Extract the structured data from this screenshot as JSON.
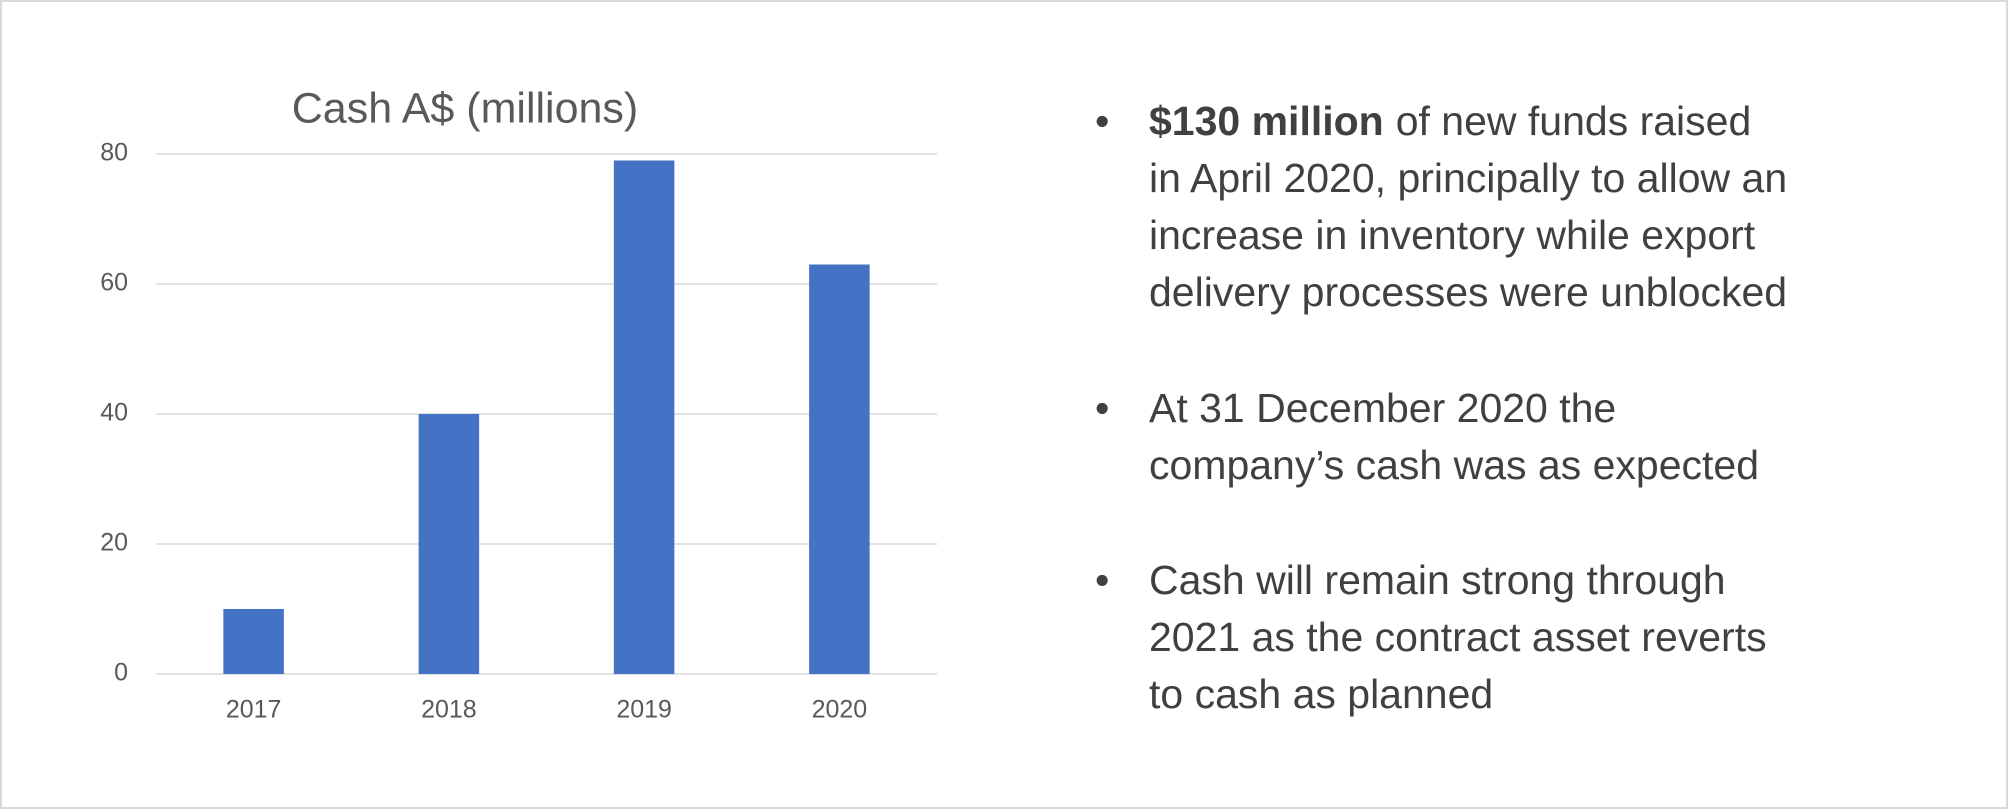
{
  "chart_data": {
    "type": "bar",
    "title": "Cash A$ (millions)",
    "categories": [
      "2017",
      "2018",
      "2019",
      "2020"
    ],
    "values": [
      10,
      40,
      79,
      63
    ],
    "color": "#4472c4",
    "ylim": [
      0,
      80
    ],
    "yticks": [
      0,
      20,
      40,
      60,
      80
    ],
    "grid": true
  },
  "bullets": [
    {
      "bold": "$130 million",
      "lines": [
        "of new funds raised",
        "in April 2020, principally to allow an",
        "increase in inventory while export",
        "delivery processes were unblocked"
      ]
    },
    {
      "lines": [
        "At 31 December 2020 the",
        "company’s cash was as expected"
      ]
    },
    {
      "lines": [
        "Cash will remain strong through",
        "2021 as the contract asset reverts",
        "to cash as planned"
      ]
    }
  ]
}
